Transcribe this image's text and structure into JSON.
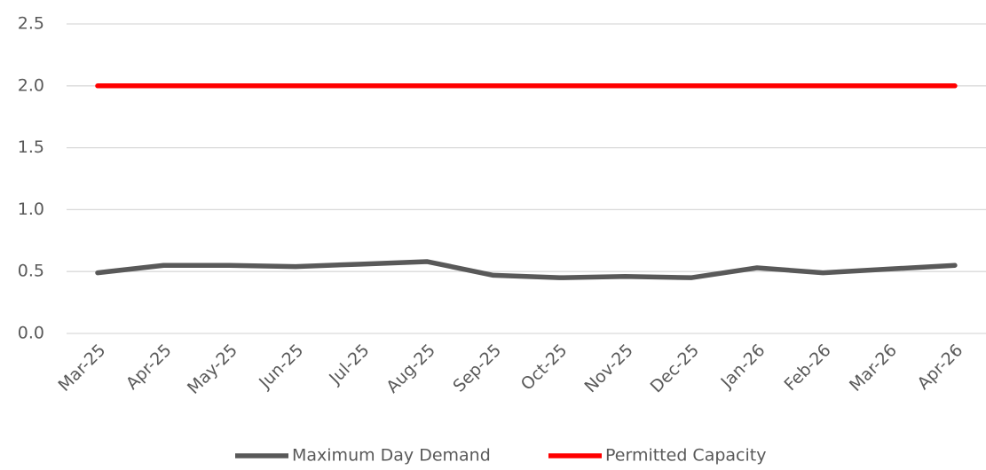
{
  "chart_data": {
    "type": "line",
    "categories": [
      "Mar-25",
      "Apr-25",
      "May-25",
      "Jun-25",
      "Jul-25",
      "Aug-25",
      "Sep-25",
      "Oct-25",
      "Nov-25",
      "Dec-25",
      "Jan-26",
      "Feb-26",
      "Mar-26",
      "Apr-26"
    ],
    "series": [
      {
        "name": "Maximum Day Demand",
        "color": "#595959",
        "values": [
          0.49,
          0.55,
          0.55,
          0.54,
          0.56,
          0.58,
          0.47,
          0.45,
          0.46,
          0.45,
          0.53,
          0.49,
          0.52,
          0.55
        ]
      },
      {
        "name": "Permitted Capacity",
        "color": "#ff0000",
        "values": [
          2,
          2,
          2,
          2,
          2,
          2,
          2,
          2,
          2,
          2,
          2,
          2,
          2,
          2
        ]
      }
    ],
    "ylim": [
      0,
      2.5
    ],
    "yticks": [
      {
        "value": 0,
        "label": "0.0"
      },
      0.5,
      {
        "value": 1,
        "label": "1.0"
      },
      1.5,
      {
        "value": 2,
        "label": "2.0"
      },
      2.5
    ],
    "grid": true,
    "legend": "bottom"
  }
}
